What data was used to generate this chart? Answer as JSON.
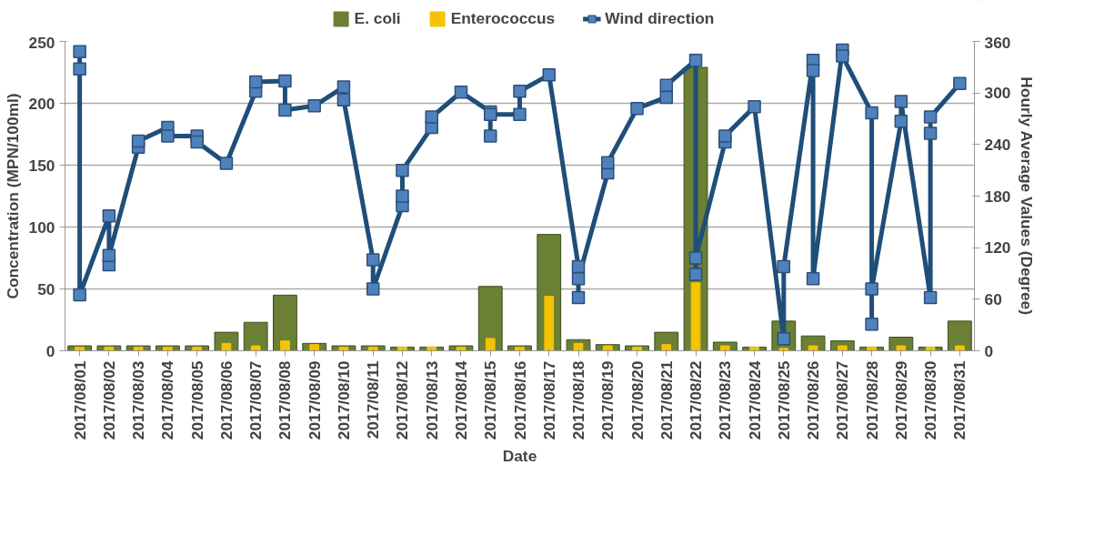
{
  "chart_data": {
    "type": "bar",
    "categories": [
      "2017/08/01",
      "2017/08/02",
      "2017/08/03",
      "2017/08/04",
      "2017/08/05",
      "2017/08/06",
      "2017/08/07",
      "2017/08/08",
      "2017/08/09",
      "2017/08/10",
      "2017/08/11",
      "2017/08/12",
      "2017/08/13",
      "2017/08/14",
      "2017/08/15",
      "2017/08/16",
      "2017/08/17",
      "2017/08/18",
      "2017/08/19",
      "2017/08/20",
      "2017/08/21",
      "2017/08/22",
      "2017/08/23",
      "2017/08/24",
      "2017/08/25",
      "2017/08/26",
      "2017/08/27",
      "2017/08/28",
      "2017/08/29",
      "2017/08/30",
      "2017/08/31"
    ],
    "series": [
      {
        "name": "E. coli",
        "color": "#6b7f35",
        "values": [
          4,
          4,
          4,
          4,
          4,
          15,
          23,
          45,
          6,
          4,
          4,
          3,
          3,
          4,
          52,
          4,
          94,
          9,
          5,
          4,
          15,
          229,
          7,
          3,
          24,
          12,
          8,
          3,
          11,
          3,
          24
        ]
      },
      {
        "name": "Enterococcus",
        "color": "#f5c400",
        "values": [
          3,
          3,
          3,
          3,
          3,
          6,
          4,
          8,
          5,
          3,
          3,
          3,
          3,
          3,
          10,
          3,
          44,
          6,
          4,
          3,
          5,
          55,
          4,
          3,
          2,
          4,
          4,
          3,
          4,
          3,
          4
        ]
      },
      {
        "name": "Wind direction",
        "type": "line",
        "axis": "y2",
        "color": "#1f4e79",
        "x": [
          "2017/08/01",
          "2017/08/01",
          "2017/08/01",
          "2017/08/02",
          "2017/08/02",
          "2017/08/02",
          "2017/08/03",
          "2017/08/03",
          "2017/08/04",
          "2017/08/04",
          "2017/08/05",
          "2017/08/05",
          "2017/08/06",
          "2017/08/07",
          "2017/08/07",
          "2017/08/08",
          "2017/08/08",
          "2017/08/09",
          "2017/08/10",
          "2017/08/10",
          "2017/08/11",
          "2017/08/11",
          "2017/08/12",
          "2017/08/12",
          "2017/08/12",
          "2017/08/13",
          "2017/08/13",
          "2017/08/14",
          "2017/08/15",
          "2017/08/15",
          "2017/08/15",
          "2017/08/16",
          "2017/08/16",
          "2017/08/17",
          "2017/08/18",
          "2017/08/18",
          "2017/08/18",
          "2017/08/19",
          "2017/08/19",
          "2017/08/20",
          "2017/08/21",
          "2017/08/21",
          "2017/08/22",
          "2017/08/22",
          "2017/08/22",
          "2017/08/23",
          "2017/08/23",
          "2017/08/24",
          "2017/08/25",
          "2017/08/25",
          "2017/08/26",
          "2017/08/26",
          "2017/08/26",
          "2017/08/27",
          "2017/08/27",
          "2017/08/28",
          "2017/08/28",
          "2017/08/28",
          "2017/08/29",
          "2017/08/29",
          "2017/08/30",
          "2017/08/30",
          "2017/08/30",
          "2017/08/31"
        ],
        "values": [
          348,
          328,
          65,
          157,
          100,
          111,
          237,
          244,
          260,
          250,
          250,
          243,
          218,
          302,
          313,
          314,
          280,
          285,
          307,
          292,
          106,
          72,
          169,
          180,
          210,
          260,
          272,
          301,
          278,
          250,
          275,
          275,
          302,
          321,
          98,
          62,
          84,
          207,
          219,
          282,
          295,
          309,
          338,
          89,
          108,
          243,
          250,
          284,
          14,
          98,
          338,
          326,
          84,
          350,
          343,
          277,
          31,
          72,
          267,
          290,
          62,
          253,
          272,
          311
        ]
      }
    ],
    "xlabel": "Date",
    "ylabel": "Concentration (MPN/100ml)",
    "y2label": "Hourly Average Values (Degree)",
    "ylim": [
      0,
      250
    ],
    "yticks": [
      0,
      50,
      100,
      150,
      200,
      250
    ],
    "y2lim": [
      0,
      360
    ],
    "y2ticks": [
      0,
      60,
      120,
      180,
      240,
      300,
      360
    ],
    "grid": "y",
    "legend": "top",
    "marker": "square"
  }
}
